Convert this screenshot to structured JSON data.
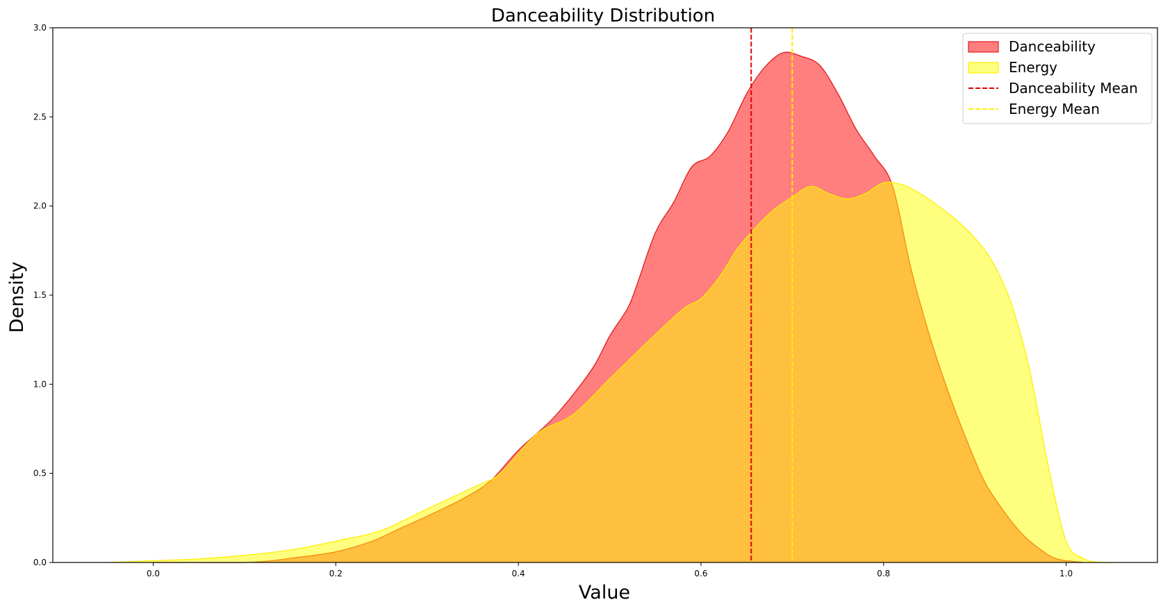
{
  "chart_data": {
    "type": "area",
    "title": "Danceability Distribution",
    "xlabel": "Value",
    "ylabel": "Density",
    "xlim": [
      -0.11,
      1.1
    ],
    "ylim": [
      0,
      3.0
    ],
    "xticks": [
      0.0,
      0.2,
      0.4,
      0.6,
      0.8,
      1.0
    ],
    "xtick_labels": [
      "0.0",
      "0.2",
      "0.4",
      "0.6",
      "0.8",
      "1.0"
    ],
    "yticks": [
      0.0,
      0.5,
      1.0,
      1.5,
      2.0,
      2.5,
      3.0
    ],
    "ytick_labels": [
      "0.0",
      "0.5",
      "1.0",
      "1.5",
      "2.0",
      "2.5",
      "3.0"
    ],
    "grid": false,
    "legend_position": "top-right",
    "series": [
      {
        "name": "Danceability",
        "fill": "#ff0000",
        "fill_opacity": 0.5,
        "stroke": "#e31a1c",
        "x": [
          0.0,
          0.05,
          0.1,
          0.13,
          0.16,
          0.2,
          0.24,
          0.27,
          0.3,
          0.34,
          0.37,
          0.4,
          0.44,
          0.48,
          0.5,
          0.52,
          0.53,
          0.55,
          0.57,
          0.59,
          0.61,
          0.63,
          0.65,
          0.67,
          0.69,
          0.71,
          0.73,
          0.75,
          0.77,
          0.79,
          0.81,
          0.83,
          0.85,
          0.87,
          0.89,
          0.91,
          0.93,
          0.95,
          0.97,
          0.99,
          1.02
        ],
        "y": [
          0.0,
          0.0,
          0.0,
          0.01,
          0.03,
          0.06,
          0.12,
          0.19,
          0.26,
          0.36,
          0.46,
          0.63,
          0.82,
          1.08,
          1.27,
          1.43,
          1.56,
          1.85,
          2.02,
          2.22,
          2.28,
          2.42,
          2.63,
          2.78,
          2.86,
          2.84,
          2.79,
          2.63,
          2.43,
          2.28,
          2.11,
          1.65,
          1.28,
          0.97,
          0.7,
          0.46,
          0.3,
          0.17,
          0.08,
          0.02,
          0.0
        ]
      },
      {
        "name": "Energy",
        "fill": "#ffff00",
        "fill_opacity": 0.5,
        "stroke": "#ffee00",
        "x": [
          -0.05,
          0.0,
          0.05,
          0.1,
          0.15,
          0.2,
          0.25,
          0.3,
          0.35,
          0.38,
          0.42,
          0.46,
          0.5,
          0.54,
          0.58,
          0.6,
          0.62,
          0.64,
          0.66,
          0.68,
          0.7,
          0.72,
          0.74,
          0.76,
          0.78,
          0.8,
          0.82,
          0.84,
          0.86,
          0.88,
          0.9,
          0.92,
          0.94,
          0.96,
          0.98,
          1.0,
          1.02,
          1.04,
          1.05
        ],
        "y": [
          0.0,
          0.01,
          0.02,
          0.04,
          0.07,
          0.12,
          0.18,
          0.3,
          0.42,
          0.5,
          0.72,
          0.83,
          1.03,
          1.23,
          1.42,
          1.48,
          1.6,
          1.76,
          1.88,
          1.98,
          2.05,
          2.11,
          2.07,
          2.04,
          2.07,
          2.13,
          2.12,
          2.07,
          2.0,
          1.92,
          1.82,
          1.68,
          1.45,
          1.08,
          0.55,
          0.12,
          0.02,
          0.0,
          0.0
        ]
      }
    ],
    "reference_lines": [
      {
        "name": "Danceability Mean",
        "x": 0.655,
        "color": "#e00000",
        "style": "dashed"
      },
      {
        "name": "Energy Mean",
        "x": 0.7,
        "color": "#ffee00",
        "style": "dashed"
      }
    ],
    "legend": [
      {
        "label": "Danceability",
        "kind": "patch",
        "fill": "#ff0000",
        "fill_opacity": 0.5,
        "stroke": "#e31a1c"
      },
      {
        "label": "Energy",
        "kind": "patch",
        "fill": "#ffff00",
        "fill_opacity": 0.5,
        "stroke": "#ffee00"
      },
      {
        "label": "Danceability Mean",
        "kind": "line",
        "stroke": "#e00000"
      },
      {
        "label": "Energy Mean",
        "kind": "line",
        "stroke": "#ffee00"
      }
    ]
  }
}
